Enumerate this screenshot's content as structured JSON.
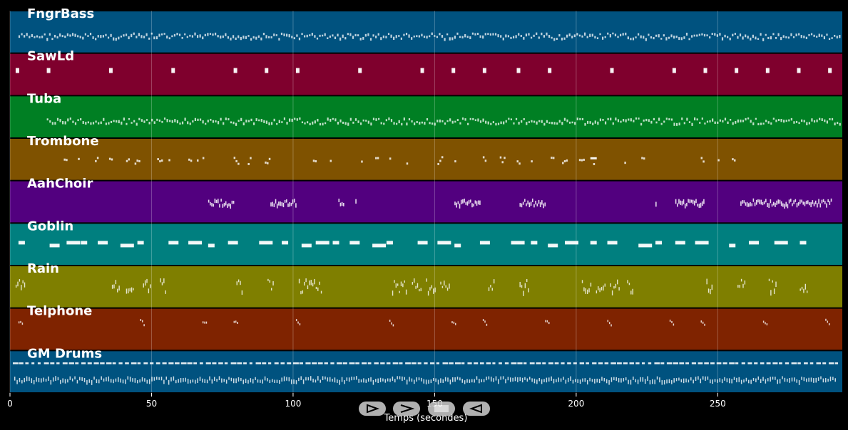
{
  "chart_data": {
    "type": "piano-roll",
    "title": "",
    "xlabel": "Temps (secondes)",
    "ylabel": "",
    "xlim": [
      0,
      294
    ],
    "xticks": [
      0,
      50,
      100,
      150,
      200,
      250
    ],
    "grid": true,
    "tracks": [
      {
        "name": "FngrBass",
        "color": "#00527f",
        "pattern": "dense-bass",
        "start": 3,
        "end": 293
      },
      {
        "name": "SawLd",
        "color": "#7f002d",
        "pattern": "sparse-blocks",
        "notes": [
          2,
          13,
          35,
          57,
          79,
          90,
          101,
          123,
          145,
          156,
          167,
          179,
          190,
          212,
          234,
          245,
          256,
          267,
          278,
          289
        ]
      },
      {
        "name": "Tuba",
        "color": "#007f23",
        "pattern": "dense-bass",
        "start": 13,
        "end": 293
      },
      {
        "name": "Trombone",
        "color": "#7f5200",
        "pattern": "scattered",
        "notes": [
          19,
          24,
          30,
          35,
          41,
          44,
          52,
          56,
          63,
          66,
          68,
          79,
          84,
          90,
          107,
          113,
          124,
          129,
          134,
          140,
          151,
          157,
          167,
          173,
          179,
          184,
          191,
          195,
          201,
          206,
          217,
          223,
          244,
          250,
          255
        ]
      },
      {
        "name": "AahChoir",
        "color": "#52007f",
        "pattern": "clusters",
        "clusters": [
          [
            70,
            79
          ],
          [
            92,
            101
          ],
          [
            116,
            118
          ],
          [
            122,
            122
          ],
          [
            157,
            166
          ],
          [
            180,
            189
          ],
          [
            228,
            228
          ],
          [
            235,
            245
          ],
          [
            258,
            290
          ]
        ]
      },
      {
        "name": "Goblin",
        "color": "#007f7f",
        "pattern": "dashes",
        "notes": [
          3,
          14,
          20,
          25,
          31,
          39,
          45,
          56,
          63,
          70,
          77,
          88,
          96,
          103,
          108,
          114,
          120,
          128,
          133,
          144,
          151,
          157,
          166,
          177,
          184,
          190,
          196,
          205,
          211,
          222,
          228,
          235,
          242,
          254,
          261,
          270,
          279
        ]
      },
      {
        "name": "Rain",
        "color": "#7f7f00",
        "pattern": "bursts",
        "clusters": [
          [
            2,
            5
          ],
          [
            36,
            39
          ],
          [
            41,
            44
          ],
          [
            47,
            50
          ],
          [
            53,
            55
          ],
          [
            80,
            82
          ],
          [
            91,
            93
          ],
          [
            102,
            110
          ],
          [
            135,
            140
          ],
          [
            142,
            145
          ],
          [
            147,
            150
          ],
          [
            152,
            155
          ],
          [
            169,
            171
          ],
          [
            180,
            183
          ],
          [
            202,
            205
          ],
          [
            207,
            210
          ],
          [
            212,
            215
          ],
          [
            218,
            220
          ],
          [
            246,
            248
          ],
          [
            257,
            260
          ],
          [
            268,
            271
          ],
          [
            279,
            282
          ]
        ]
      },
      {
        "name": "Telphone",
        "color": "#7f2300",
        "pattern": "sparse-ticks",
        "notes": [
          3,
          46,
          68,
          79,
          101,
          134,
          156,
          167,
          189,
          211,
          233,
          244,
          266,
          288
        ]
      },
      {
        "name": "GM Drums",
        "color": "#00527f",
        "pattern": "drums",
        "start": 1,
        "end": 292
      }
    ]
  },
  "controls": {
    "play": "play-icon",
    "next": "forward-icon",
    "stop": "stop-icon",
    "prev": "back-icon"
  }
}
